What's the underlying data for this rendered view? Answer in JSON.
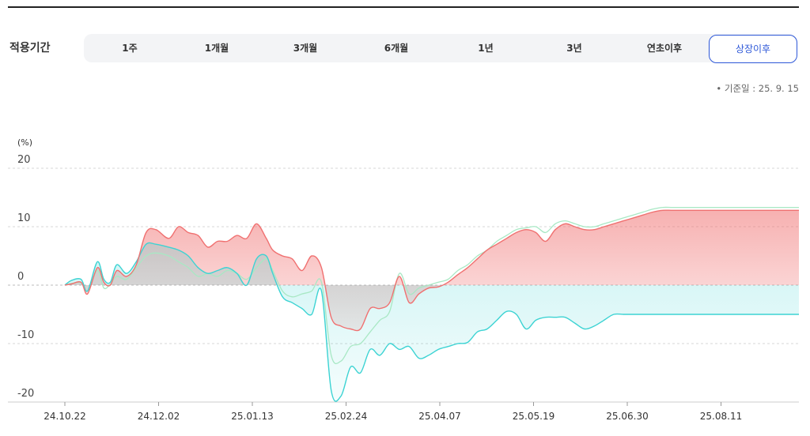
{
  "period": {
    "label": "적용기간",
    "options": [
      "1주",
      "1개월",
      "3개월",
      "6개월",
      "1년",
      "3년",
      "연초이후",
      "상장이후"
    ],
    "selected": "상장이후"
  },
  "base_date_text": "• 기준일 : 25. 9. 15",
  "colors": {
    "accent": "#2e58d8",
    "red": "#f07070",
    "cyan": "#3cd3d3",
    "mint": "#a8e8c4"
  },
  "chart_data": {
    "type": "area",
    "unit_label": "(%)",
    "y_ticks": [
      20,
      10,
      0,
      -10,
      -20
    ],
    "ylim": [
      -22,
      20
    ],
    "x_tick_labels": [
      "24.10.22",
      "24.12.02",
      "25.01.13",
      "25.02.24",
      "25.04.07",
      "25.05.19",
      "25.06.30",
      "25.08.11"
    ],
    "x": [
      0,
      2,
      5,
      7,
      10,
      12,
      14,
      16,
      19,
      22,
      25,
      28,
      32,
      35,
      38,
      41,
      44,
      47,
      50,
      53,
      56,
      59,
      62,
      64,
      67,
      70,
      73,
      76,
      79,
      82,
      85,
      88,
      91,
      94,
      97,
      100,
      103,
      106,
      109,
      112,
      115,
      118,
      121,
      124,
      127,
      130,
      133,
      136,
      139,
      142,
      145,
      148,
      151,
      154,
      157,
      160,
      163,
      166,
      169,
      172,
      175,
      178,
      181,
      184,
      187,
      190,
      193,
      196,
      199,
      202,
      205,
      208,
      211,
      214,
      217,
      220,
      223,
      226
    ],
    "grid": "horizontal-dashed",
    "series": [
      {
        "values": [
          0,
          0.2,
          0.5,
          -1.5,
          3,
          0.5,
          0,
          2.5,
          1.5,
          3.5,
          9,
          9.5,
          8,
          10,
          9,
          8.5,
          6.5,
          7.5,
          7.5,
          8.5,
          8,
          10.5,
          8,
          6,
          5,
          4.5,
          2.5,
          5,
          3,
          -5.5,
          -7,
          -7.5,
          -7.5,
          -4,
          -4,
          -3,
          1.5,
          -3,
          -1.5,
          -0.5,
          -0.3,
          0.5,
          1.8,
          3,
          4.5,
          6,
          7,
          8,
          9,
          9.5,
          9,
          7.5,
          9.5,
          10.5,
          10,
          9.5,
          9.5,
          10,
          10.5,
          11,
          11.5,
          12,
          12.5,
          12.8,
          12.8,
          12.8,
          12.8,
          12.8,
          12.8,
          12.8,
          12.8,
          12.8,
          12.8,
          12.8,
          12.8,
          12.8,
          12.8,
          12.8
        ]
      },
      {
        "values": [
          0,
          0.8,
          1,
          -1,
          4,
          1,
          0.5,
          3.5,
          2,
          4,
          7,
          7,
          6.5,
          6,
          5,
          3,
          2,
          2.5,
          3,
          2,
          0,
          4.5,
          5,
          2,
          -2,
          -3,
          -4,
          -5,
          -1,
          -18,
          -19,
          -14,
          -15,
          -11,
          -12,
          -10,
          -11,
          -10.5,
          -12.5,
          -12,
          -11,
          -10.5,
          -10,
          -9.8,
          -8,
          -7.5,
          -6,
          -4.5,
          -5,
          -7.5,
          -6,
          -5.5,
          -5.5,
          -5.5,
          -6.5,
          -7.5,
          -7,
          -6,
          -5,
          -5,
          -5,
          -5,
          -5,
          -5,
          -5,
          -5,
          -5,
          -5,
          -5,
          -5,
          -5,
          -5,
          -5,
          -5,
          -5,
          -5,
          -5,
          -5
        ]
      },
      {
        "values": [
          0,
          0.3,
          0.4,
          -1,
          2.5,
          -0.5,
          0.2,
          1.5,
          1,
          3,
          5,
          5.5,
          5,
          4,
          3,
          1.5,
          2,
          1.5,
          2.5,
          2,
          1,
          3,
          4.5,
          2.5,
          -1,
          -2,
          -1.5,
          -1,
          0.5,
          -12,
          -13,
          -10.5,
          -10,
          -8,
          -6,
          -4.5,
          2,
          -1.5,
          -0.5,
          0,
          0.5,
          1,
          2.5,
          3.5,
          5,
          6,
          7.5,
          8.5,
          9.5,
          9.8,
          10,
          9,
          10.5,
          11,
          10.5,
          10,
          10,
          10.5,
          11,
          11.5,
          12,
          12.5,
          13,
          13.3,
          13.3,
          13.3,
          13.3,
          13.3,
          13.3,
          13.3,
          13.3,
          13.3,
          13.3,
          13.3,
          13.3,
          13.3,
          13.3,
          13.3
        ]
      }
    ]
  }
}
